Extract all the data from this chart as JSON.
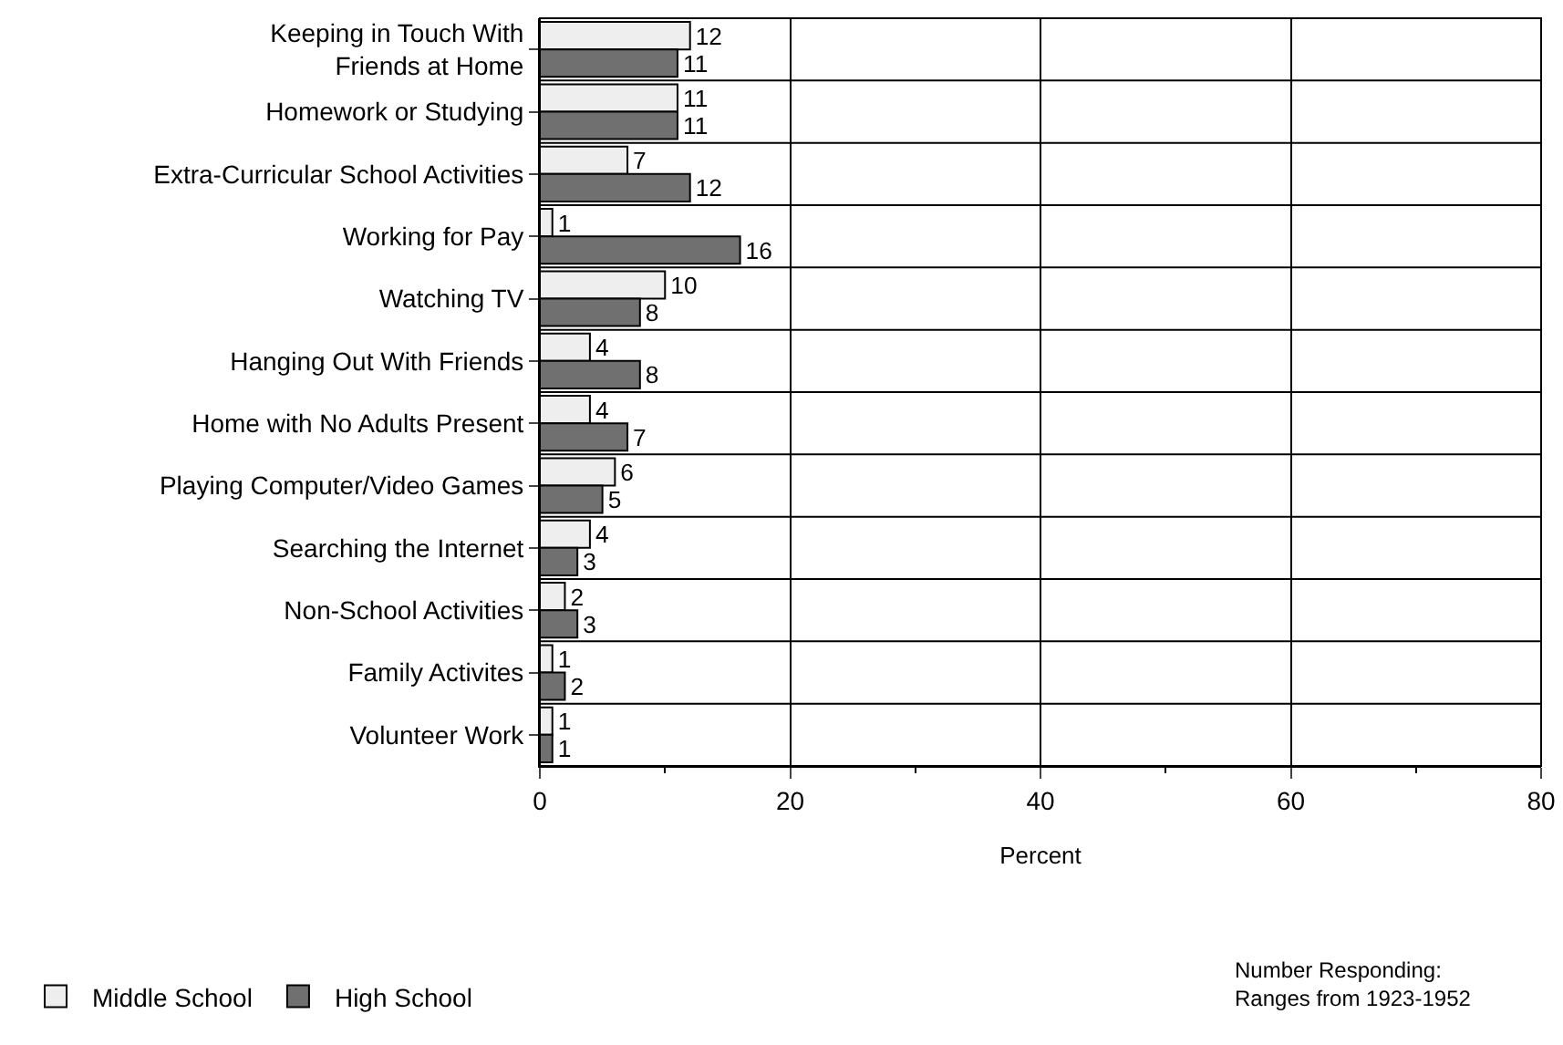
{
  "chart_data": {
    "type": "bar",
    "orientation": "horizontal",
    "xlabel": "Percent",
    "categories": [
      "Keeping in Touch With\nFriends at Home",
      "Homework or Studying",
      "Extra-Curricular School Activities",
      "Working for Pay",
      "Watching TV",
      "Hanging Out With Friends",
      "Home with No Adults Present",
      "Playing Computer/Video Games",
      "Searching the Internet",
      "Non-School Activities",
      "Family Activites",
      "Volunteer Work"
    ],
    "series": [
      {
        "name": "Middle School",
        "color": "#eeeeee",
        "values": [
          12,
          11,
          7,
          1,
          10,
          4,
          4,
          6,
          4,
          2,
          1,
          1
        ]
      },
      {
        "name": "High School",
        "color": "#707070",
        "values": [
          11,
          11,
          12,
          16,
          8,
          8,
          7,
          5,
          3,
          3,
          2,
          1
        ]
      }
    ],
    "xlim": [
      0,
      80
    ],
    "xticks": [
      0,
      20,
      40,
      60,
      80
    ],
    "grid": true,
    "data_labels": true,
    "legend": "bottom left",
    "annotations": [
      "Number Responding:\nRanges from 1923-1952"
    ]
  }
}
